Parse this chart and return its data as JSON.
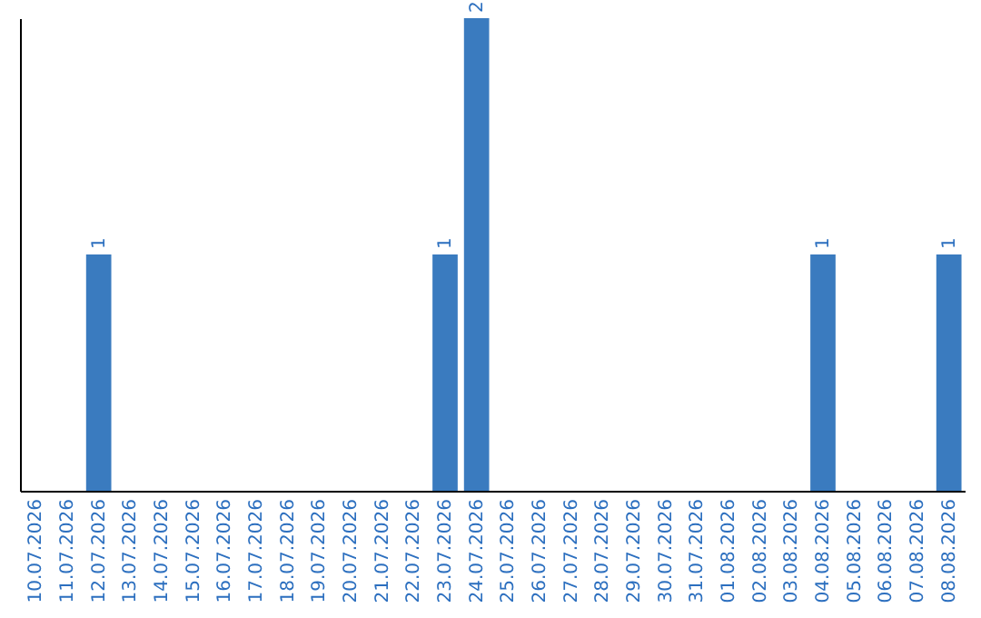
{
  "chart_data": {
    "type": "bar",
    "categories": [
      "10.07.2026",
      "11.07.2026",
      "12.07.2026",
      "13.07.2026",
      "14.07.2026",
      "15.07.2026",
      "16.07.2026",
      "17.07.2026",
      "18.07.2026",
      "19.07.2026",
      "20.07.2026",
      "21.07.2026",
      "22.07.2026",
      "23.07.2026",
      "24.07.2026",
      "25.07.2026",
      "26.07.2026",
      "27.07.2026",
      "28.07.2026",
      "29.07.2026",
      "30.07.2026",
      "31.07.2026",
      "01.08.2026",
      "02.08.2026",
      "03.08.2026",
      "04.08.2026",
      "05.08.2026",
      "06.08.2026",
      "07.08.2026",
      "08.08.2026"
    ],
    "values": [
      0,
      0,
      1,
      0,
      0,
      0,
      0,
      0,
      0,
      0,
      0,
      0,
      0,
      1,
      2,
      0,
      0,
      0,
      0,
      0,
      0,
      0,
      0,
      0,
      0,
      1,
      0,
      0,
      0,
      1
    ],
    "value_labels": [
      null,
      null,
      "1",
      null,
      null,
      null,
      null,
      null,
      null,
      null,
      null,
      null,
      null,
      "1",
      "2",
      null,
      null,
      null,
      null,
      null,
      null,
      null,
      null,
      null,
      null,
      "1",
      null,
      null,
      null,
      "1"
    ],
    "color": "#3a7bbf",
    "tick_labels": "x",
    "grid": false
  }
}
